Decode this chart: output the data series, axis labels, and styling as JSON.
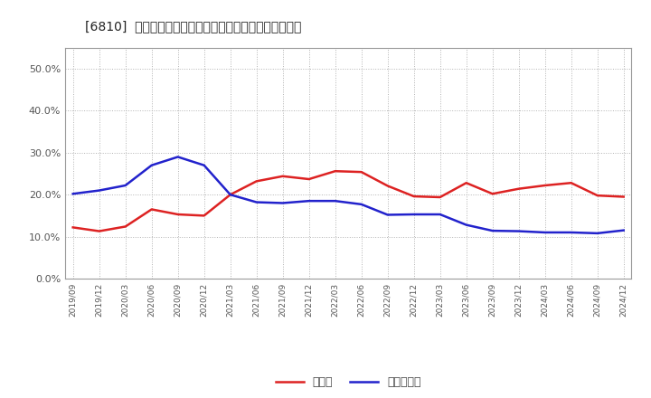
{
  "title": "[6810]  現預金、有利子負債の総資産に対する比率の推移",
  "x_labels": [
    "2019/09",
    "2019/12",
    "2020/03",
    "2020/06",
    "2020/09",
    "2020/12",
    "2021/03",
    "2021/06",
    "2021/09",
    "2021/12",
    "2022/03",
    "2022/06",
    "2022/09",
    "2022/12",
    "2023/03",
    "2023/06",
    "2023/09",
    "2023/12",
    "2024/03",
    "2024/06",
    "2024/09",
    "2024/12"
  ],
  "cash": [
    0.122,
    0.113,
    0.124,
    0.165,
    0.153,
    0.15,
    0.2,
    0.232,
    0.244,
    0.237,
    0.256,
    0.254,
    0.221,
    0.196,
    0.194,
    0.228,
    0.202,
    0.214,
    0.222,
    0.228,
    0.198,
    0.195
  ],
  "interest_debt": [
    0.202,
    0.21,
    0.222,
    0.27,
    0.29,
    0.27,
    0.2,
    0.182,
    0.18,
    0.185,
    0.185,
    0.177,
    0.152,
    0.153,
    0.153,
    0.128,
    0.114,
    0.113,
    0.11,
    0.11,
    0.108,
    0.115
  ],
  "cash_color": "#dd2222",
  "debt_color": "#2222cc",
  "background_color": "#ffffff",
  "plot_bg_color": "#ffffff",
  "grid_color": "#aaaaaa",
  "ylim": [
    0.0,
    0.55
  ],
  "yticks": [
    0.0,
    0.1,
    0.2,
    0.3,
    0.4,
    0.5
  ],
  "legend_cash": "現預金",
  "legend_debt": "有利子負債",
  "linewidth": 1.8
}
